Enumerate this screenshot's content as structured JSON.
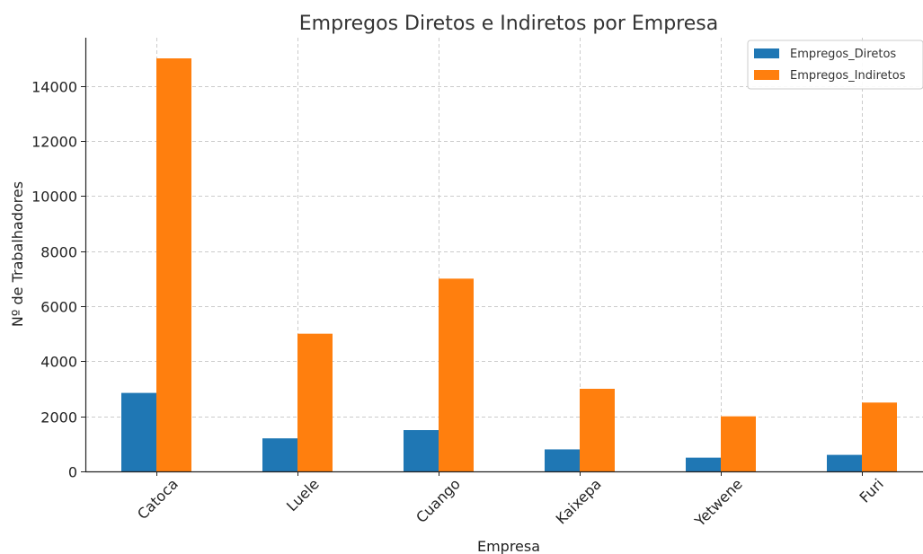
{
  "chart_data": {
    "type": "bar",
    "title": "Empregos Diretos e Indiretos por Empresa",
    "xlabel": "Empresa",
    "ylabel": "Nº de Trabalhadores",
    "categories": [
      "Catoca",
      "Luele",
      "Cuango",
      "Kaixepa",
      "Yetwene",
      "Furi"
    ],
    "series": [
      {
        "name": "Empregos_Diretos",
        "values": [
          2850,
          1200,
          1500,
          800,
          500,
          600
        ],
        "color": "#1f77b4"
      },
      {
        "name": "Empregos_Indiretos",
        "values": [
          15000,
          5000,
          7000,
          3000,
          2000,
          2500
        ],
        "color": "#ff7f0e"
      }
    ],
    "ylim": [
      0,
      15750
    ],
    "yticks": [
      0,
      2000,
      4000,
      6000,
      8000,
      10000,
      12000,
      14000
    ],
    "grid": true,
    "legend_position": "top-right"
  }
}
